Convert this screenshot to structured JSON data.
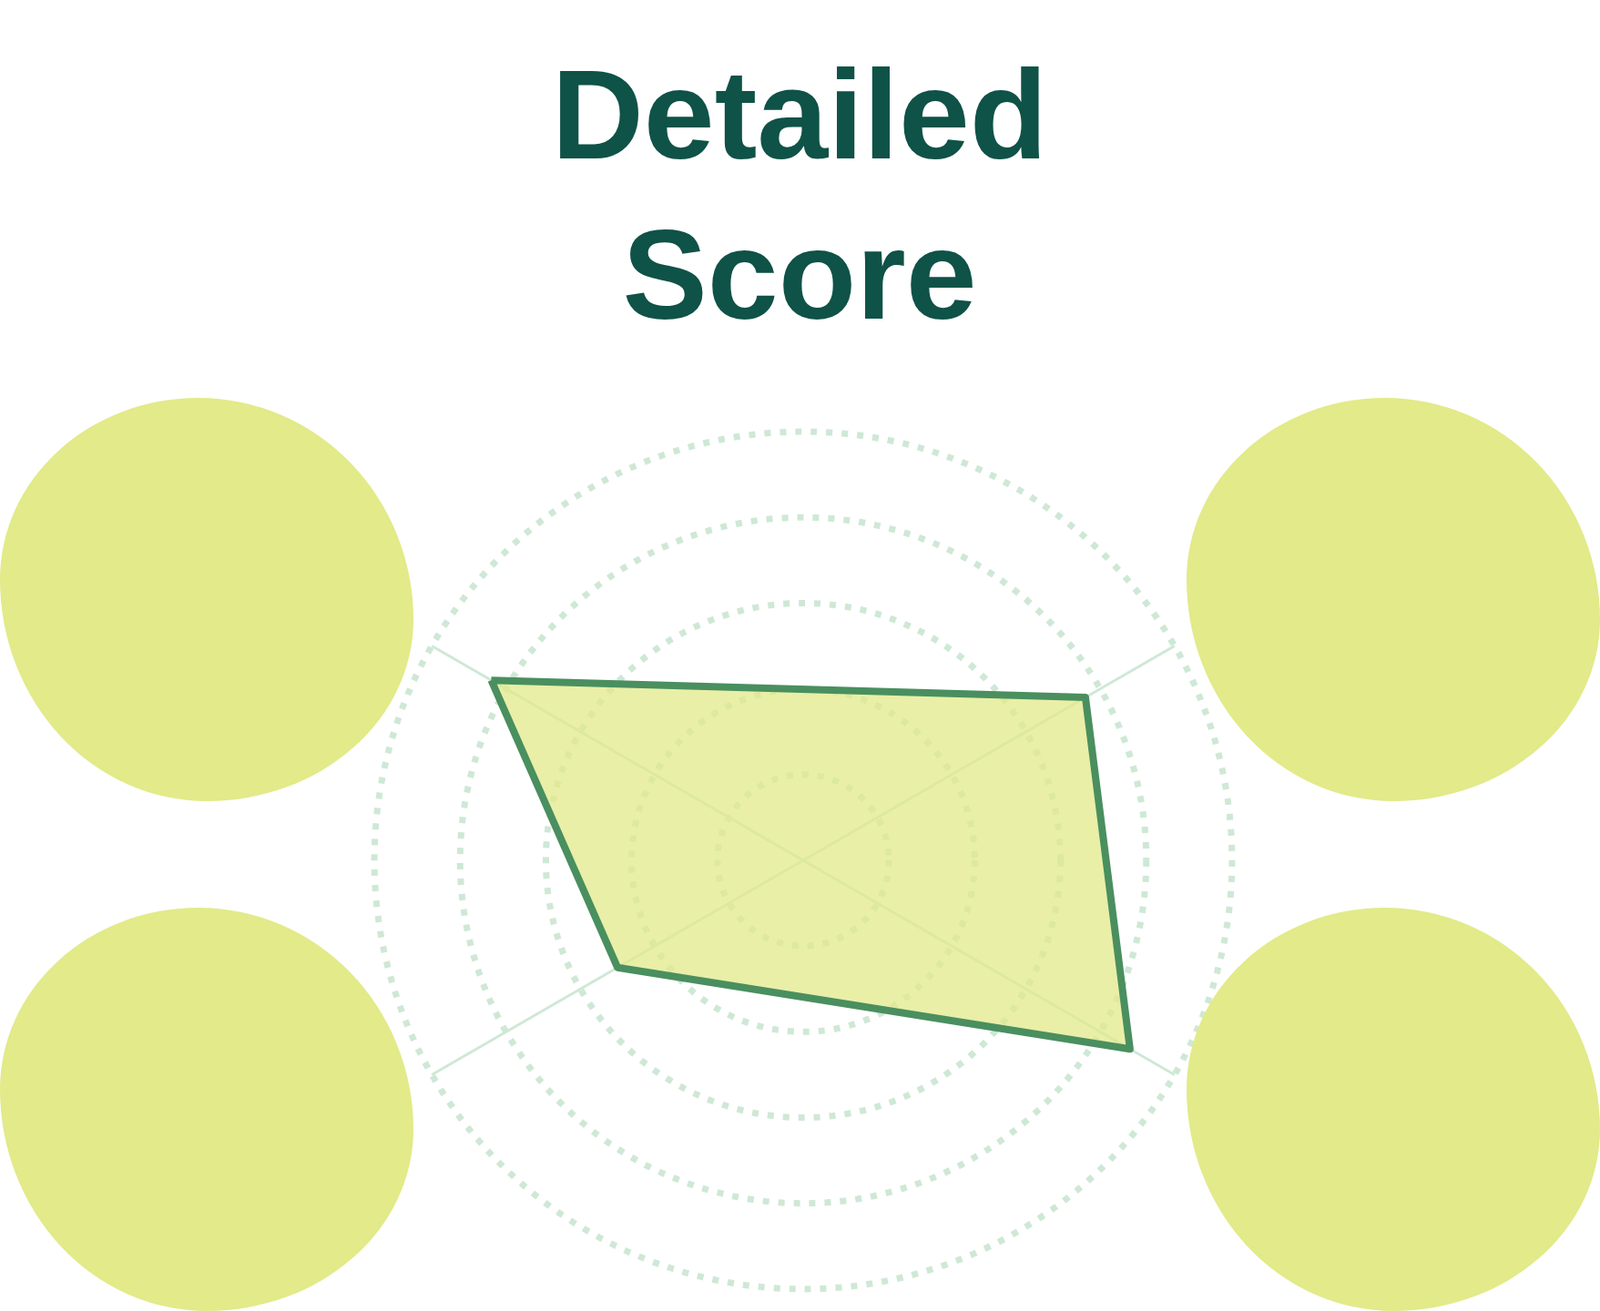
{
  "chart_data": {
    "type": "radar",
    "title": "Detailed Score",
    "categories": [
      null,
      null,
      null,
      null
    ],
    "values": [
      4.2,
      3.8,
      4.4,
      2.5
    ],
    "color": "#4a8f5f",
    "ylim": [
      0,
      5
    ],
    "yticks": [
      1,
      2,
      3,
      4,
      5
    ],
    "grid": true,
    "tick_labels": false
  }
}
